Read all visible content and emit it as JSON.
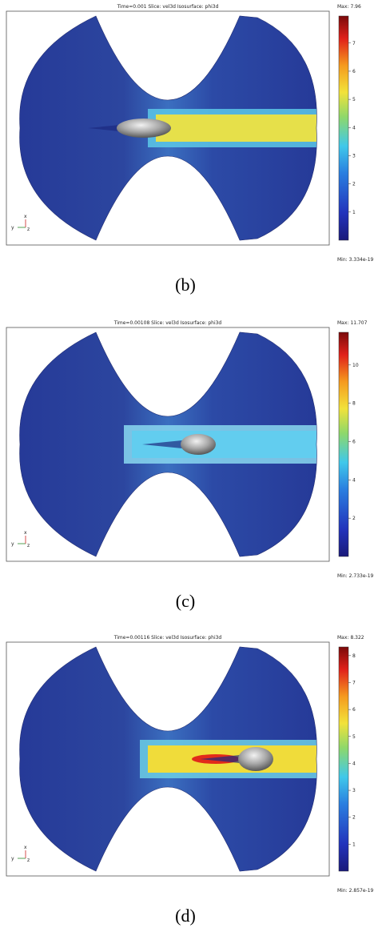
{
  "panels": [
    {
      "title": "Time=0.001    Slice: vel3d    Isosurface: phi3d",
      "colorbar": {
        "max_label": "Max:",
        "max": 7.96,
        "min_label": "Min:",
        "min": 3.334e-19,
        "ticks": [
          1,
          2,
          3,
          4,
          5,
          6,
          7
        ]
      },
      "triad": [
        "y",
        "x",
        "z"
      ],
      "caption": "(b)"
    },
    {
      "title": "Time=0.00108    Slice: vel3d    Isosurface: phi3d",
      "colorbar": {
        "max_label": "Max:",
        "max": 11.707,
        "min_label": "Min:",
        "min": 2.733e-19,
        "ticks": [
          2,
          4,
          6,
          8,
          10
        ]
      },
      "triad": [
        "y",
        "x",
        "z"
      ],
      "caption": "(c)"
    },
    {
      "title": "Time=0.00116    Slice: vel3d    Isosurface: phi3d",
      "colorbar": {
        "max_label": "Max:",
        "max": 8.322,
        "min_label": "Min:",
        "min": 2.857e-19,
        "ticks": [
          1,
          2,
          3,
          4,
          5,
          6,
          7,
          8
        ]
      },
      "triad": [
        "y",
        "x",
        "z"
      ],
      "caption": "(d)"
    }
  ]
}
